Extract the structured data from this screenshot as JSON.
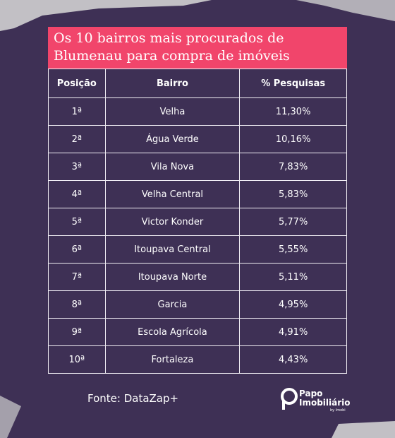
{
  "header": {
    "title": "Os 10 bairros mais procurados de Blumenau para compra de imóveis"
  },
  "table": {
    "columns": [
      "Posição",
      "Bairro",
      "% Pesquisas"
    ],
    "rows": [
      [
        "1ª",
        "Velha",
        "11,30%"
      ],
      [
        "2ª",
        "Água Verde",
        "10,16%"
      ],
      [
        "3ª",
        "Vila Nova",
        "7,83%"
      ],
      [
        "4ª",
        "Velha Central",
        "5,83%"
      ],
      [
        "5ª",
        "Victor Konder",
        "5,77%"
      ],
      [
        "6ª",
        "Itoupava Central",
        "5,55%"
      ],
      [
        "7ª",
        "Itoupava Norte",
        "5,11%"
      ],
      [
        "8ª",
        "Garcia",
        "4,95%"
      ],
      [
        "9ª",
        "Escola Agrícola",
        "4,91%"
      ],
      [
        "10ª",
        "Fortaleza",
        "4,43%"
      ]
    ]
  },
  "footer": {
    "source": "Fonte: DataZap+"
  },
  "logo": {
    "line1": "Papo",
    "line2": "Imobiliário",
    "tagline": "by Imobi"
  }
}
